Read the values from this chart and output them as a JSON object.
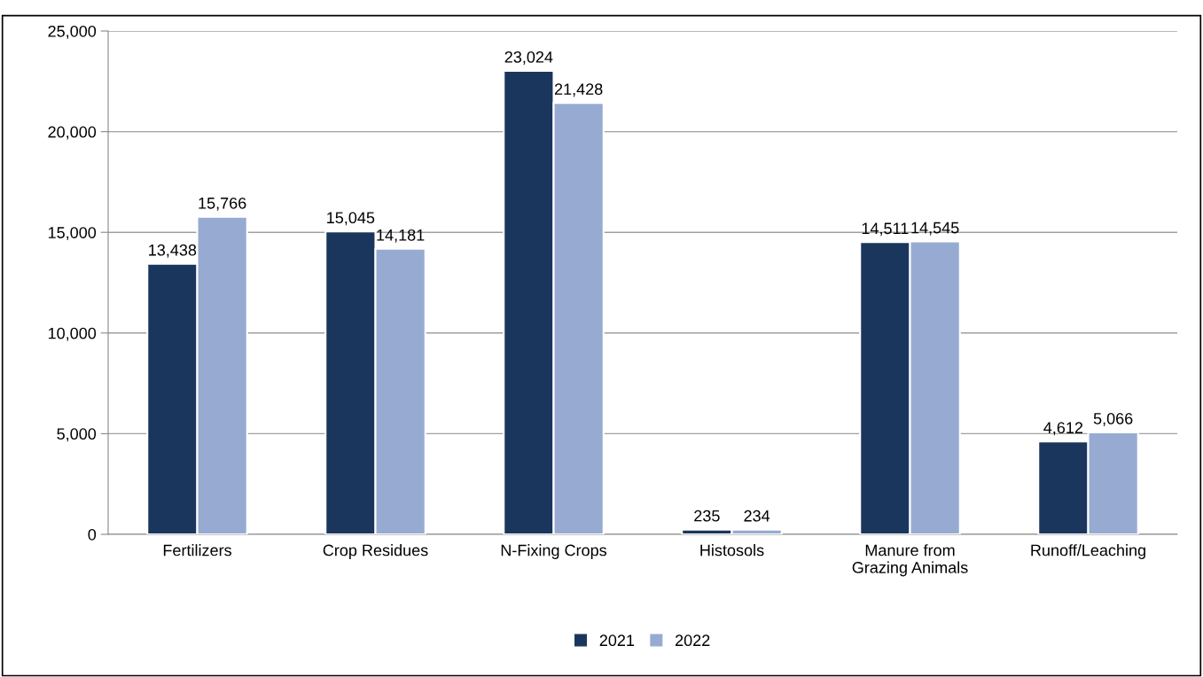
{
  "chart_data": {
    "type": "bar",
    "categories": [
      "Fertilizers",
      "Crop Residues",
      "N-Fixing Crops",
      "Histosols",
      "Manure from\nGrazing Animals",
      "Runoff/Leaching"
    ],
    "series": [
      {
        "name": "2021",
        "color": "#1b365d",
        "values": [
          13438,
          15045,
          23024,
          235,
          14511,
          4612
        ],
        "value_labels": [
          "13,438",
          "15,045",
          "23,024",
          "235",
          "14,511",
          "4,612"
        ]
      },
      {
        "name": "2022",
        "color": "#97abd2",
        "values": [
          15766,
          14181,
          21428,
          234,
          14545,
          5066
        ],
        "value_labels": [
          "15,766",
          "14,181",
          "21,428",
          "234",
          "14,545",
          "5,066"
        ]
      }
    ],
    "ylim": [
      0,
      25000
    ],
    "yticks": [
      {
        "value": 0,
        "label": "0"
      },
      {
        "value": 5000,
        "label": "5,000"
      },
      {
        "value": 10000,
        "label": "10,000"
      },
      {
        "value": 15000,
        "label": "15,000"
      },
      {
        "value": 20000,
        "label": "20,000"
      },
      {
        "value": 25000,
        "label": "25,000"
      }
    ],
    "grid": "y",
    "legend": "bottom"
  }
}
